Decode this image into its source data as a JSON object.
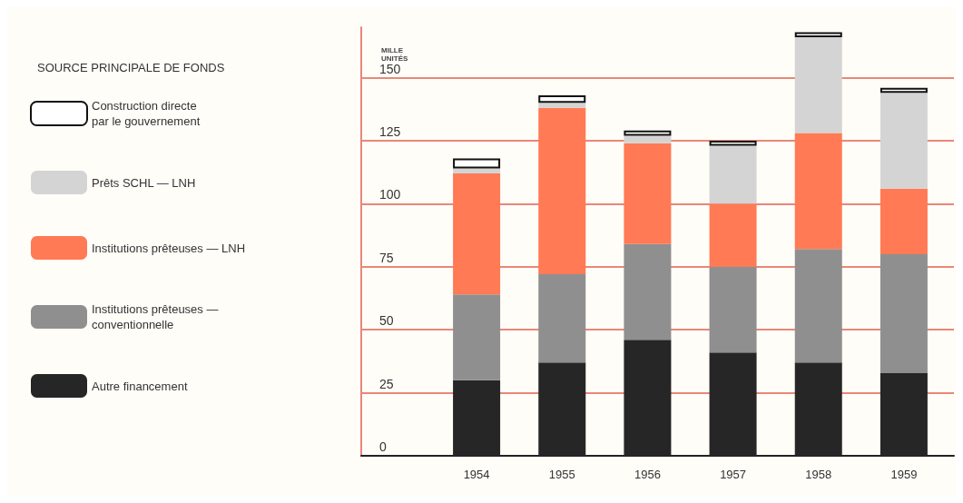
{
  "chart_data": {
    "type": "bar",
    "stacked": true,
    "legend_title": "SOURCE PRINCIPALE DE FONDS",
    "ylabel": "MILLE\nUNITÉS",
    "categories": [
      "1954",
      "1955",
      "1956",
      "1957",
      "1958",
      "1959"
    ],
    "series": [
      {
        "name": "Autre financement",
        "color": "#262626",
        "values": [
          30,
          37,
          46,
          41,
          37,
          33
        ]
      },
      {
        "name": "Institutions prêteuses —\nconventionnelle",
        "color": "#8f8f8f",
        "values": [
          34,
          35,
          38,
          34,
          45,
          47
        ]
      },
      {
        "name": "Institutions prêteuses — LNH",
        "color": "#ff7a55",
        "values": [
          48,
          66,
          40,
          25,
          46,
          26
        ]
      },
      {
        "name": "Prêts SCHL — LNH",
        "color": "#d4d4d4",
        "values": [
          2,
          2,
          3,
          23,
          38,
          38
        ]
      },
      {
        "name": "Construction directe\npar le gouvernement",
        "color": "#ffffff",
        "values": [
          4,
          3,
          2,
          2,
          2,
          2
        ]
      }
    ],
    "ylim": [
      0,
      170
    ],
    "yticks": [
      0,
      25,
      50,
      75,
      100,
      125,
      150
    ],
    "grid": "y",
    "legend": "left"
  }
}
